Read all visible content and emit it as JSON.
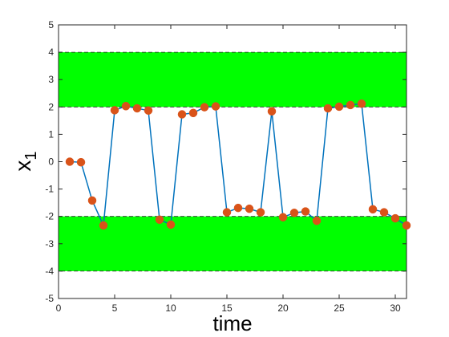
{
  "chart_data": {
    "type": "line",
    "xlabel": "time",
    "ylabel": "x",
    "ylabel_subscript": "1",
    "xlim": [
      0,
      31
    ],
    "ylim": [
      -5,
      5
    ],
    "x_ticks": [
      0,
      5,
      10,
      15,
      20,
      25,
      30
    ],
    "y_ticks": [
      -5,
      -4,
      -3,
      -2,
      -1,
      0,
      1,
      2,
      3,
      4,
      5
    ],
    "grid": false,
    "bands": [
      {
        "y0": 2,
        "y1": 4,
        "color": "#00ff00"
      },
      {
        "y0": -4,
        "y1": -2,
        "color": "#00ff00"
      }
    ],
    "series": [
      {
        "line_color": "#0072bd",
        "marker_color": "#d95319",
        "x": [
          1,
          2,
          3,
          4,
          5,
          6,
          7,
          8,
          9,
          10,
          11,
          12,
          13,
          14,
          15,
          16,
          17,
          18,
          19,
          20,
          21,
          22,
          23,
          24,
          25,
          26,
          27,
          28,
          29,
          30,
          31
        ],
        "y": [
          0.0,
          -0.02,
          -1.42,
          -2.33,
          1.88,
          2.03,
          1.95,
          1.87,
          -2.12,
          -2.3,
          1.73,
          1.78,
          1.99,
          2.02,
          -1.85,
          -1.69,
          -1.72,
          -1.85,
          1.84,
          -2.03,
          -1.87,
          -1.82,
          -2.16,
          1.95,
          2.01,
          2.07,
          2.12,
          -1.74,
          -1.85,
          -2.07,
          -2.33
        ]
      }
    ]
  }
}
